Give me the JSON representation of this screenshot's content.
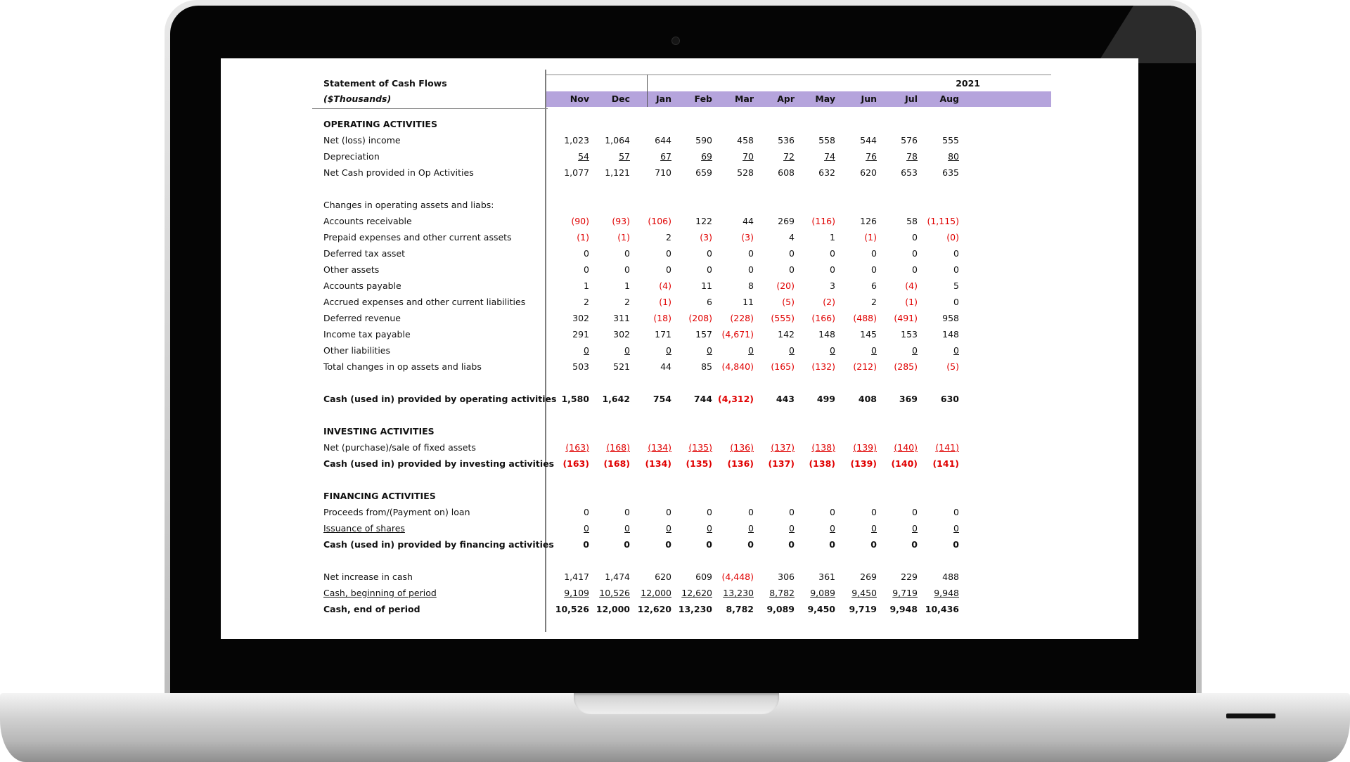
{
  "sheet": {
    "title": "Statement of Cash Flows",
    "subtitle": "($Thousands)",
    "year": "2021",
    "months": [
      "Nov",
      "Dec",
      "Jan",
      "Feb",
      "Mar",
      "Apr",
      "May",
      "Jun",
      "Jul",
      "Aug"
    ]
  },
  "rows": [
    {
      "label": "OPERATING ACTIVITIES",
      "bold": true,
      "values": []
    },
    {
      "label": "Net (loss) income",
      "values": [
        "1,023",
        "1,064",
        "644",
        "590",
        "458",
        "536",
        "558",
        "544",
        "576",
        "555"
      ]
    },
    {
      "label": "Depreciation",
      "underline_vals": true,
      "values": [
        "54",
        "57",
        "67",
        "69",
        "70",
        "72",
        "74",
        "76",
        "78",
        "80"
      ]
    },
    {
      "label": "Net Cash provided in Op Activities",
      "values": [
        "1,077",
        "1,121",
        "710",
        "659",
        "528",
        "608",
        "632",
        "620",
        "653",
        "635"
      ]
    },
    {
      "label": "",
      "values": []
    },
    {
      "label": "Changes in operating assets and liabs:",
      "values": []
    },
    {
      "label": "Accounts receivable",
      "values": [
        "(90)",
        "(93)",
        "(106)",
        "122",
        "44",
        "269",
        "(116)",
        "126",
        "58",
        "(1,115)"
      ]
    },
    {
      "label": "Prepaid expenses and other current assets",
      "values": [
        "(1)",
        "(1)",
        "2",
        "(3)",
        "(3)",
        "4",
        "1",
        "(1)",
        "0",
        "(0)"
      ]
    },
    {
      "label": "Deferred tax asset",
      "values": [
        "0",
        "0",
        "0",
        "0",
        "0",
        "0",
        "0",
        "0",
        "0",
        "0"
      ]
    },
    {
      "label": "Other assets",
      "values": [
        "0",
        "0",
        "0",
        "0",
        "0",
        "0",
        "0",
        "0",
        "0",
        "0"
      ]
    },
    {
      "label": "Accounts payable",
      "values": [
        "1",
        "1",
        "(4)",
        "11",
        "8",
        "(20)",
        "3",
        "6",
        "(4)",
        "5"
      ]
    },
    {
      "label": "Accrued expenses and other current liabilities",
      "values": [
        "2",
        "2",
        "(1)",
        "6",
        "11",
        "(5)",
        "(2)",
        "2",
        "(1)",
        "0"
      ]
    },
    {
      "label": "Deferred revenue",
      "values": [
        "302",
        "311",
        "(18)",
        "(208)",
        "(228)",
        "(555)",
        "(166)",
        "(488)",
        "(491)",
        "958"
      ]
    },
    {
      "label": "Income tax payable",
      "values": [
        "291",
        "302",
        "171",
        "157",
        "(4,671)",
        "142",
        "148",
        "145",
        "153",
        "148"
      ]
    },
    {
      "label": "Other liabilities",
      "underline_vals": true,
      "values": [
        "0",
        "0",
        "0",
        "0",
        "0",
        "0",
        "0",
        "0",
        "0",
        "0"
      ]
    },
    {
      "label": "Total changes in op assets and liabs",
      "values": [
        "503",
        "521",
        "44",
        "85",
        "(4,840)",
        "(165)",
        "(132)",
        "(212)",
        "(285)",
        "(5)"
      ]
    },
    {
      "label": "",
      "values": []
    },
    {
      "label": "Cash (used in) provided by operating activities",
      "bold": true,
      "values": [
        "1,580",
        "1,642",
        "754",
        "744",
        "(4,312)",
        "443",
        "499",
        "408",
        "369",
        "630"
      ]
    },
    {
      "label": "",
      "values": []
    },
    {
      "label": "INVESTING ACTIVITIES",
      "bold": true,
      "values": []
    },
    {
      "label": "Net (purchase)/sale of fixed assets",
      "underline_vals": true,
      "values": [
        "(163)",
        "(168)",
        "(134)",
        "(135)",
        "(136)",
        "(137)",
        "(138)",
        "(139)",
        "(140)",
        "(141)"
      ]
    },
    {
      "label": "Cash (used in) provided by investing activities",
      "bold": true,
      "values": [
        "(163)",
        "(168)",
        "(134)",
        "(135)",
        "(136)",
        "(137)",
        "(138)",
        "(139)",
        "(140)",
        "(141)"
      ]
    },
    {
      "label": "",
      "values": []
    },
    {
      "label": "FINANCING ACTIVITIES",
      "bold": true,
      "values": []
    },
    {
      "label": "Proceeds from/(Payment on) loan",
      "values": [
        "0",
        "0",
        "0",
        "0",
        "0",
        "0",
        "0",
        "0",
        "0",
        "0"
      ]
    },
    {
      "label": "Issuance of shares",
      "underline_label": true,
      "underline_vals": true,
      "values": [
        "0",
        "0",
        "0",
        "0",
        "0",
        "0",
        "0",
        "0",
        "0",
        "0"
      ]
    },
    {
      "label": "Cash (used in) provided by financing activities",
      "bold": true,
      "values": [
        "0",
        "0",
        "0",
        "0",
        "0",
        "0",
        "0",
        "0",
        "0",
        "0"
      ]
    },
    {
      "label": "",
      "values": []
    },
    {
      "label": "Net increase in cash",
      "values": [
        "1,417",
        "1,474",
        "620",
        "609",
        "(4,448)",
        "306",
        "361",
        "269",
        "229",
        "488"
      ]
    },
    {
      "label": "Cash, beginning of period",
      "underline_label": true,
      "underline_vals": true,
      "values": [
        "9,109",
        "10,526",
        "12,000",
        "12,620",
        "13,230",
        "8,782",
        "9,089",
        "9,450",
        "9,719",
        "9,948"
      ]
    },
    {
      "label": "Cash, end of period",
      "bold": true,
      "values": [
        "10,526",
        "12,000",
        "12,620",
        "13,230",
        "8,782",
        "9,089",
        "9,450",
        "9,719",
        "9,948",
        "10,436"
      ]
    }
  ],
  "colors": {
    "header_band": "#b5a4dc",
    "negative": "#e00000"
  }
}
